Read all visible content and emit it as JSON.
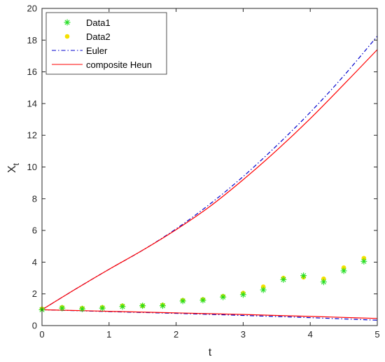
{
  "chart_data": {
    "type": "line",
    "xlabel": "t",
    "ylabel_main": "X",
    "ylabel_sub": "t",
    "xlim": [
      0,
      5
    ],
    "ylim": [
      0,
      20
    ],
    "xticks": [
      0,
      1,
      2,
      3,
      4,
      5
    ],
    "yticks": [
      0,
      2,
      4,
      6,
      8,
      10,
      12,
      14,
      16,
      18,
      20
    ],
    "grid": false,
    "legend_location": "top-left",
    "series": [
      {
        "name": "Data1",
        "kind": "markers",
        "marker": "asterisk",
        "color": "#22dd22",
        "x": [
          0,
          0.3,
          0.6,
          0.9,
          1.2,
          1.5,
          1.8,
          2.1,
          2.4,
          2.7,
          3.0,
          3.3,
          3.6,
          3.9,
          4.2,
          4.5,
          4.8
        ],
        "y": [
          1.0,
          1.1,
          1.05,
          1.1,
          1.2,
          1.25,
          1.25,
          1.55,
          1.6,
          1.8,
          1.95,
          2.25,
          2.9,
          3.15,
          2.75,
          3.45,
          4.05
        ]
      },
      {
        "name": "Data2",
        "kind": "markers",
        "marker": "dot",
        "color": "#f5e000",
        "x": [
          0,
          0.3,
          0.6,
          0.9,
          1.2,
          1.5,
          1.8,
          2.1,
          2.4,
          2.7,
          3.0,
          3.3,
          3.6,
          3.9,
          4.2,
          4.5,
          4.8
        ],
        "y": [
          1.05,
          1.15,
          1.1,
          1.15,
          1.25,
          1.25,
          1.3,
          1.6,
          1.65,
          1.85,
          2.05,
          2.45,
          3.0,
          3.05,
          2.95,
          3.65,
          4.25
        ]
      },
      {
        "name": "Euler",
        "kind": "line",
        "dash": "dashdot",
        "color": "#0000cc",
        "curves": [
          {
            "x": [
              0,
              0.5,
              1,
              1.5,
              2,
              2.5,
              3,
              3.5,
              4,
              4.5,
              5
            ],
            "y": [
              1.0,
              2.3,
              3.55,
              4.75,
              6.1,
              7.65,
              9.4,
              11.35,
              13.45,
              15.75,
              18.25
            ]
          },
          {
            "x": [
              0,
              1,
              2,
              3,
              4,
              5
            ],
            "y": [
              1.0,
              0.88,
              0.77,
              0.64,
              0.5,
              0.34
            ]
          }
        ]
      },
      {
        "name": "composite Heun",
        "kind": "line",
        "dash": "solid",
        "color": "#ff0000",
        "curves": [
          {
            "x": [
              0,
              0.5,
              1,
              1.5,
              2,
              2.5,
              3,
              3.5,
              4,
              4.5,
              5
            ],
            "y": [
              1.0,
              2.3,
              3.55,
              4.75,
              6.05,
              7.5,
              9.2,
              11.05,
              13.05,
              15.2,
              17.4
            ]
          },
          {
            "x": [
              0,
              1,
              2,
              3,
              4,
              5
            ],
            "y": [
              1.0,
              0.9,
              0.8,
              0.7,
              0.58,
              0.45
            ]
          }
        ]
      }
    ]
  }
}
